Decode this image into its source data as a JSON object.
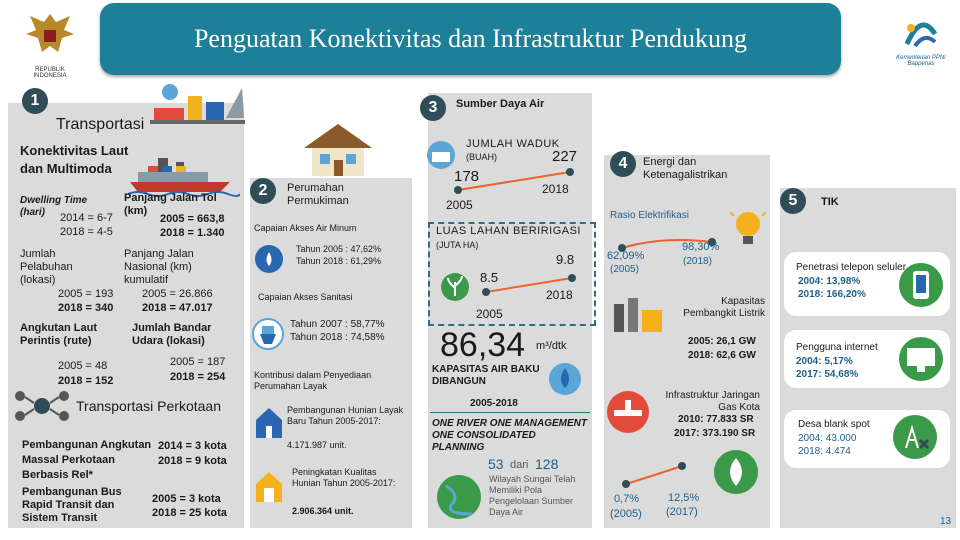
{
  "header": {
    "title": "Penguatan Konektivitas dan Infrastruktur Pendukung",
    "left_logo": "REPUBLIK INDONESIA",
    "right_logo": "Kementerian PPN/ Bappenas"
  },
  "s1": {
    "num": "1",
    "title": "Transportasi",
    "laut": "Konektivitas Laut dan Multimoda",
    "dwelling_label": "Dwelling Time (hari)",
    "dwelling_1": "2014 = 6-7",
    "dwelling_2": "2018 = 4-5",
    "tol_label": "Panjang Jalan Tol (km)",
    "tol_1": "2005 = 663,8",
    "tol_2": "2018 = 1.340",
    "pel_label": "Jumlah Pelabuhan (lokasi)",
    "pel_1": "2005 = 193",
    "pel_2": "2018 = 340",
    "jalan_label": "Panjang Jalan Nasional (km) kumulatif",
    "jalan_1": "2005 = 26.866",
    "jalan_2": "2018 = 47.017",
    "perintis_label": "Angkutan Laut Perintis (rute)",
    "perintis_1": "2005 = 48",
    "perintis_2": "2018 = 152",
    "bandar_label": "Jumlah Bandar Udara (lokasi)",
    "bandar_1": "2005 = 187",
    "bandar_2": "2018 = 254",
    "kota_title": "Transportasi Perkotaan",
    "massal_label": "Pembangunan Angkutan Massal Perkotaan Berbasis Rel*",
    "massal_1": "2014 = 3 kota",
    "massal_2": "2018 = 9 kota",
    "brt_label": "Pembangunan Bus Rapid Transit dan Sistem Transit",
    "brt_1": "2005 = 3 kota",
    "brt_2": "2018 = 25 kota"
  },
  "s2": {
    "num": "2",
    "title": "Perumahan Permukiman",
    "minum_label": "Capaian Akses Air Minum",
    "minum_1": "Tahun 2005 : 47,62%",
    "minum_2": "Tahun 2018 : 61,29%",
    "sanitasi_label": "Capaian Akses Sanitasi",
    "sanitasi_1": "Tahun 2007 : 58,77%",
    "sanitasi_2": "Tahun 2018 : 74,58%",
    "kontribusi": "Kontribusi dalam Penyediaan Perumahan Layak",
    "hunian_text": "Pembangunan Hunian Layak Baru Tahun 2005-2017:",
    "hunian_value": "4.171.987 unit.",
    "kualitas_text": "Peningkatan Kualitas Hunian Tahun 2005-2017:",
    "kualitas_value": "2.906.364 unit."
  },
  "s3": {
    "num": "3",
    "title": "Sumber Daya Air",
    "waduk_label": "JUMLAH WADUK",
    "waduk_unit": "(BUAH)",
    "waduk_start": "178",
    "waduk_end": "227",
    "waduk_y1": "2005",
    "waduk_y2": "2018",
    "irigasi_label": "LUAS LAHAN BERIRIGASI",
    "irigasi_unit": "(JUTA HA)",
    "irigasi_start": "8.5",
    "irigasi_end": "9.8",
    "irigasi_y1": "2005",
    "irigasi_y2": "2018",
    "kapasitas_value": "86,34",
    "kapasitas_unit": "m³/dtk",
    "kapasitas_label": "KAPASITAS AIR BAKU DIBANGUN",
    "kapasitas_period": "2005-2018",
    "river_text": "ONE RIVER ONE MANAGEMENT ONE CONSOLIDATED PLANNING",
    "river_count": "53",
    "river_of": "dari",
    "river_total": "128",
    "river_desc": "Wilayah Sungai Telah Memiliki Pola Pengelolaan Sumber Daya Air"
  },
  "s4": {
    "num": "4",
    "title": "Energi dan Ketenagalistrikan",
    "rasio_label": "Rasio Elektrifikasi",
    "rasio_1": "62,09%",
    "rasio_1_year": "(2005)",
    "rasio_2": "98,30%",
    "rasio_2_year": "(2018)",
    "kapasitas_label": "Kapasitas Pembangkit Listrik",
    "kapasitas_1": "2005: 26,1 GW",
    "kapasitas_2": "2018: 62,6 GW",
    "gas_label": "Infrastruktur Jaringan Gas Kota",
    "gas_1": "2010: 77.833 SR",
    "gas_2": "2017: 373.190 SR",
    "bauran_1": "0,7%",
    "bauran_1_year": "(2005)",
    "bauran_2": "12,5%",
    "bauran_2_year": "(2017)"
  },
  "s5": {
    "num": "5",
    "title": "TIK",
    "telepon_label": "Penetrasi telepon seluler",
    "telepon_1": "2004:   13,98%",
    "telepon_2": "2018: 166,20%",
    "internet_label": "Pengguna internet",
    "internet_1": "2004:   5,17%",
    "internet_2": "2017: 54,68%",
    "blank_label": "Desa blank spot",
    "blank_1": "2004: 43.000",
    "blank_2": "2018:   4.474"
  },
  "page_number": "13",
  "colors": {
    "title_bar": "#1d8098",
    "panel": "#dbdbdb",
    "badge": "#2e4d56",
    "accent_orange": "#e8642c",
    "accent_teal": "#2e6f84"
  }
}
